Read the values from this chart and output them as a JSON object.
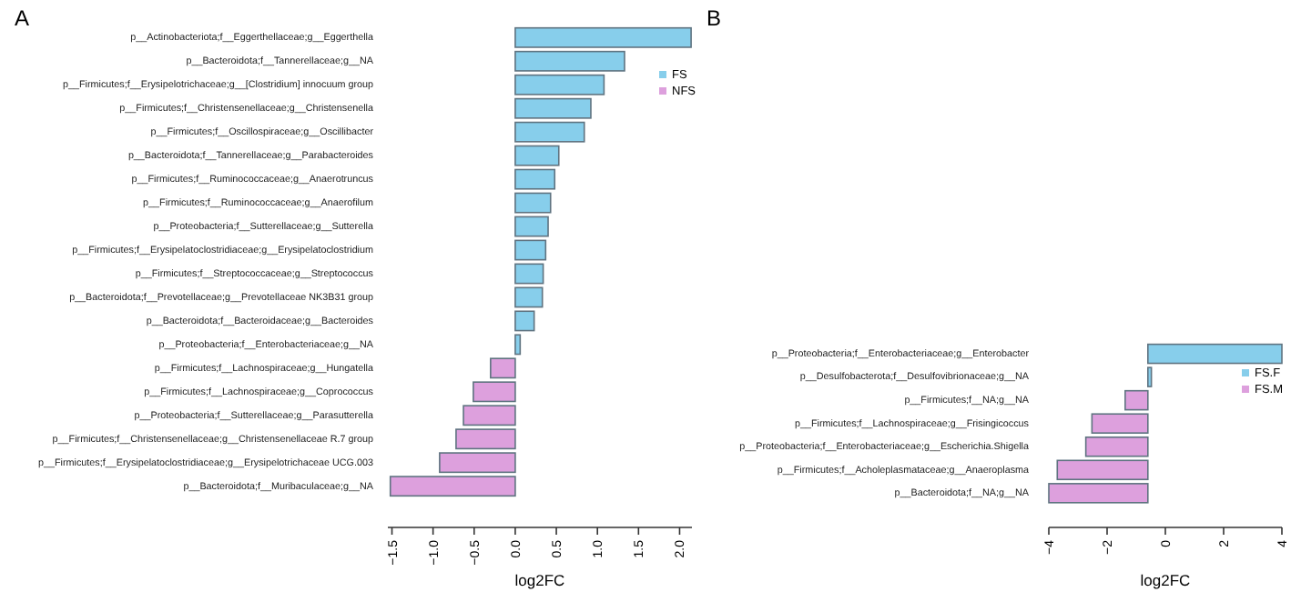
{
  "chart_data": [
    {
      "type": "bar",
      "orientation": "horizontal",
      "title": "A",
      "xlabel": "log2FC",
      "legend": "right",
      "categories": [
        "p__Actinobacteriota;f__Eggerthellaceae;g__Eggerthella",
        "p__Bacteroidota;f__Tannerellaceae;g__NA",
        "p__Firmicutes;f__Erysipelotrichaceae;g__[Clostridium] innocuum group",
        "p__Firmicutes;f__Christensenellaceae;g__Christensenella",
        "p__Firmicutes;f__Oscillospiraceae;g__Oscillibacter",
        "p__Bacteroidota;f__Tannerellaceae;g__Parabacteroides",
        "p__Firmicutes;f__Ruminococcaceae;g__Anaerotruncus",
        "p__Firmicutes;f__Ruminococcaceae;g__Anaerofilum",
        "p__Proteobacteria;f__Sutterellaceae;g__Sutterella",
        "p__Firmicutes;f__Erysipelatoclostridiaceae;g__Erysipelatoclostridium",
        "p__Firmicutes;f__Streptococcaceae;g__Streptococcus",
        "p__Bacteroidota;f__Prevotellaceae;g__Prevotellaceae NK3B31 group",
        "p__Bacteroidota;f__Bacteroidaceae;g__Bacteroides",
        "p__Proteobacteria;f__Enterobacteriaceae;g__NA",
        "p__Firmicutes;f__Lachnospiraceae;g__Hungatella",
        "p__Firmicutes;f__Lachnospiraceae;g__Coprococcus",
        "p__Proteobacteria;f__Sutterellaceae;g__Parasutterella",
        "p__Firmicutes;f__Christensenellaceae;g__Christensenellaceae R.7 group",
        "p__Firmicutes;f__Erysipelatoclostridiaceae;g__Erysipelotrichaceae UCG.003",
        "p__Bacteroidota;f__Muribaculaceae;g__NA"
      ],
      "series": [
        {
          "name": "FS",
          "color": "#87ceeb",
          "values": [
            2.14,
            1.33,
            1.08,
            0.92,
            0.84,
            0.53,
            0.48,
            0.43,
            0.4,
            0.37,
            0.34,
            0.33,
            0.23,
            0.06,
            null,
            null,
            null,
            null,
            null,
            null
          ]
        },
        {
          "name": "NFS",
          "color": "#dda0dd",
          "values": [
            null,
            null,
            null,
            null,
            null,
            null,
            null,
            null,
            null,
            null,
            null,
            null,
            null,
            null,
            -0.3,
            -0.51,
            -0.63,
            -0.72,
            -0.92,
            -1.52
          ]
        }
      ],
      "xlim": [
        -1.55,
        2.15
      ],
      "xticks": [
        {
          "value": -1.5,
          "label": "−1.5"
        },
        {
          "value": -1,
          "label": "−1.0"
        },
        {
          "value": -0.5,
          "label": "−0.5"
        },
        {
          "value": 0,
          "label": "0.0"
        },
        {
          "value": 0.5,
          "label": "0.5"
        },
        {
          "value": 1,
          "label": "1.0"
        },
        {
          "value": 1.5,
          "label": "1.5"
        },
        {
          "value": 2,
          "label": "2.0"
        }
      ],
      "grid": false
    },
    {
      "type": "bar",
      "orientation": "horizontal",
      "title": "B",
      "xlabel": "log2FC",
      "legend": "right",
      "categories": [
        "p__Proteobacteria;f__Enterobacteriaceae;g__Enterobacter",
        "p__Desulfobacterota;f__Desulfovibrionaceae;g__NA",
        "p__Firmicutes;f__NA;g__NA",
        "p__Firmicutes;f__Lachnospiraceae;g__Frisingicoccus",
        "p__Proteobacteria;f__Enterobacteriaceae;g__Escherichia.Shigella",
        "p__Firmicutes;f__Acholeplasmataceae;g__Anaeroplasma",
        "p__Bacteroidota;f__NA;g__NA"
      ],
      "series": [
        {
          "name": "FS.F",
          "color": "#87ceeb",
          "base": [
            -0.6,
            -0.6,
            null,
            null,
            null,
            null,
            null
          ],
          "values": [
            4.6,
            0.12,
            null,
            null,
            null,
            null,
            null
          ]
        },
        {
          "name": "FS.M",
          "color": "#dda0dd",
          "base": [
            null,
            null,
            -0.6,
            -0.6,
            -0.6,
            -0.6,
            -0.6
          ],
          "values": [
            null,
            null,
            -0.78,
            -1.92,
            -2.13,
            -3.11,
            -3.4
          ]
        }
      ],
      "xlim": [
        -4,
        4
      ],
      "xticks": [
        {
          "value": -4,
          "label": "−4"
        },
        {
          "value": -2,
          "label": "−2"
        },
        0,
        2,
        4
      ],
      "grid": false
    }
  ]
}
